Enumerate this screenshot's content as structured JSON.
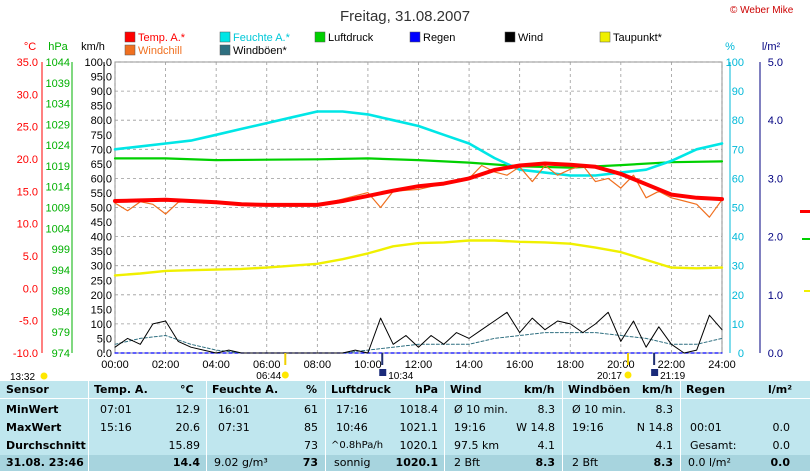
{
  "title": "Freitag, 31.08.2007",
  "credit": "© Weber Mike",
  "colors": {
    "temp": "#ff0000",
    "windchill": "#f07020",
    "humidity": "#00e6e6",
    "gust": "#2f6f80",
    "pressure": "#00d000",
    "rain": "#0000ff",
    "wind": "#000000",
    "dewpoint": "#f0f000",
    "table_bg": "#bfe6ee",
    "temp_axis": "#ff0000",
    "pressure_axis": "#00b000",
    "hum_axis": "#00b8d8",
    "rain_axis": "#000080"
  },
  "legend": {
    "row1": [
      {
        "label": "Temp. A.*",
        "color": "#ff0000"
      },
      {
        "label": "Feuchte A.*",
        "color": "#00e6e6"
      },
      {
        "label": "Luftdruck",
        "color": "#00d000"
      },
      {
        "label": "Regen",
        "color": "#0000ff"
      },
      {
        "label": "Wind",
        "color": "#000000"
      },
      {
        "label": "Taupunkt*",
        "color": "#f0f000"
      }
    ],
    "row2": [
      {
        "label": "Windchill",
        "color": "#f07020"
      },
      {
        "label": "Windböen*",
        "color": "#2f6f80"
      }
    ]
  },
  "axis_units": {
    "temp": "°C",
    "pressure": "hPa",
    "wind": "km/h",
    "humidity": "%",
    "rain": "l/m²"
  },
  "chart_data": {
    "type": "line",
    "title": "Freitag, 31.08.2007",
    "x_ticks": [
      "00:00",
      "02:00",
      "04:00",
      "06:00",
      "08:00",
      "10:00",
      "12:00",
      "14:00",
      "16:00",
      "18:00",
      "20:00",
      "22:00",
      "24:00"
    ],
    "xlim_hours": [
      0,
      24
    ],
    "axes": {
      "temp_c": {
        "range": [
          -10,
          35
        ],
        "ticks": [
          "35.0",
          "30.0",
          "25.0",
          "20.0",
          "15.0",
          "10.0",
          "5.0",
          "0.0",
          "-5.0",
          "-10.0"
        ]
      },
      "pressure_hpa": {
        "range": [
          974,
          1044
        ],
        "ticks": [
          "1044",
          "1039",
          "1034",
          "1029",
          "1024",
          "1019",
          "1014",
          "1009",
          "1004",
          "999",
          "994",
          "989",
          "984",
          "979",
          "974"
        ]
      },
      "wind_kmh": {
        "range": [
          0,
          100
        ],
        "ticks": [
          "100.0",
          "95.0",
          "90.0",
          "85.0",
          "80.0",
          "75.0",
          "70.0",
          "65.0",
          "60.0",
          "55.0",
          "50.0",
          "45.0",
          "40.0",
          "35.0",
          "30.0",
          "25.0",
          "20.0",
          "15.0",
          "10.0",
          "5.0",
          "0.0"
        ]
      },
      "humidity_pct": {
        "range": [
          0,
          100
        ],
        "ticks": [
          "100",
          "90",
          "80",
          "70",
          "60",
          "50",
          "40",
          "30",
          "20",
          "10",
          "0"
        ]
      },
      "rain_lm2": {
        "range": [
          0,
          5
        ],
        "ticks": [
          "5.0",
          "4.0",
          "3.0",
          "2.0",
          "1.0",
          "0.0"
        ]
      }
    },
    "grid": true,
    "series": [
      {
        "name": "Temp. A.*",
        "axis": "temp_c",
        "x": [
          0,
          1,
          2,
          3,
          4,
          5,
          6,
          7,
          8,
          9,
          10,
          11,
          12,
          13,
          14,
          15,
          16,
          17,
          18,
          19,
          20,
          21,
          22,
          23,
          24
        ],
        "y": [
          13.5,
          13.6,
          13.7,
          13.5,
          13.3,
          13.0,
          12.9,
          12.9,
          12.9,
          13.5,
          14.3,
          15.1,
          15.8,
          16.2,
          17.0,
          18.3,
          19.0,
          19.3,
          19.1,
          18.8,
          17.7,
          16.1,
          14.5,
          14.0,
          13.8
        ]
      },
      {
        "name": "Windchill",
        "axis": "temp_c",
        "x": [
          0,
          0.5,
          1,
          1.5,
          2,
          2.5,
          3,
          3.5,
          4,
          5,
          6,
          7,
          8,
          9,
          10,
          10.5,
          11,
          12,
          13,
          14,
          14.5,
          15,
          15.5,
          16,
          16.5,
          17,
          17.5,
          18,
          18.5,
          19,
          19.5,
          20,
          20.5,
          21,
          21.5,
          22,
          22.5,
          23,
          23.5,
          24
        ],
        "y": [
          13.2,
          12.0,
          13.4,
          13.0,
          11.5,
          13.3,
          13.5,
          13.2,
          13.3,
          13.0,
          12.9,
          12.7,
          12.8,
          13.8,
          14.8,
          12.5,
          15.0,
          15.3,
          16.2,
          17.0,
          19.0,
          18.0,
          17.5,
          18.8,
          16.5,
          19.0,
          17.5,
          18.4,
          19.0,
          16.5,
          17.0,
          15.5,
          17.5,
          14.0,
          15.0,
          14.0,
          13.5,
          13.0,
          11.0,
          13.7
        ]
      },
      {
        "name": "Feuchte A.*",
        "axis": "humidity_pct",
        "x": [
          0,
          1,
          2,
          3,
          4,
          5,
          6,
          7,
          8,
          9,
          10,
          11,
          12,
          13,
          14,
          15,
          16,
          17,
          18,
          19,
          20,
          21,
          22,
          23,
          24
        ],
        "y": [
          70,
          71,
          72,
          73,
          75,
          77,
          79,
          81,
          83,
          83,
          82,
          80,
          78,
          75,
          72,
          67,
          63,
          62,
          61,
          61,
          62,
          63,
          66,
          70,
          72
        ]
      },
      {
        "name": "Luftdruck",
        "axis": "pressure_hpa",
        "x": [
          0,
          2,
          4,
          6,
          8,
          10,
          12,
          14,
          16,
          18,
          20,
          22,
          24
        ],
        "y": [
          1020.8,
          1020.8,
          1020.4,
          1020.5,
          1020.6,
          1020.8,
          1020.4,
          1019.8,
          1018.9,
          1018.6,
          1019.2,
          1019.9,
          1020.1
        ]
      },
      {
        "name": "Taupunkt*",
        "axis": "temp_c",
        "x": [
          0,
          1,
          2,
          3,
          4,
          5,
          6,
          7,
          8,
          9,
          10,
          11,
          12,
          13,
          14,
          15,
          16,
          17,
          18,
          19,
          20,
          21,
          22,
          23,
          24
        ],
        "y": [
          2.0,
          2.3,
          2.7,
          2.8,
          2.9,
          3.0,
          3.2,
          3.5,
          3.8,
          4.5,
          5.4,
          6.5,
          7.0,
          7.1,
          7.4,
          7.4,
          7.2,
          7.1,
          6.9,
          6.3,
          5.6,
          4.4,
          3.2,
          3.1,
          3.2
        ]
      },
      {
        "name": "Wind",
        "axis": "wind_kmh",
        "x": [
          0,
          0.5,
          1,
          1.5,
          2,
          2.5,
          3,
          3.5,
          4,
          4.5,
          5,
          6,
          7,
          8,
          9,
          9.5,
          10,
          10.5,
          11,
          11.5,
          12,
          12.5,
          13,
          13.5,
          14,
          14.5,
          15,
          15.5,
          16,
          16.5,
          17,
          17.5,
          18,
          18.5,
          19,
          19.5,
          20,
          20.5,
          21,
          21.5,
          22,
          22.5,
          23,
          23.5,
          24
        ],
        "y": [
          2,
          5,
          3,
          10,
          11,
          4,
          2,
          1,
          0,
          1,
          0,
          0,
          0,
          0,
          0,
          1,
          0,
          12,
          3,
          6,
          2,
          6,
          3,
          7,
          5,
          8,
          11,
          14,
          7,
          12,
          8,
          11,
          10,
          7,
          10,
          14,
          4,
          11,
          2,
          9,
          3,
          0,
          1,
          13,
          8
        ]
      },
      {
        "name": "Windböen*",
        "axis": "wind_kmh",
        "x": [
          0,
          1,
          2,
          3,
          4,
          5,
          6,
          7,
          8,
          9,
          10,
          11,
          12,
          13,
          14,
          15,
          16,
          17,
          18,
          19,
          20,
          21,
          22,
          23,
          24
        ],
        "y": [
          3,
          5,
          6,
          3,
          1,
          0,
          0,
          0,
          0,
          0,
          1,
          2,
          3,
          3,
          3,
          5,
          6,
          7,
          7,
          7,
          6,
          5,
          3,
          3,
          5
        ]
      },
      {
        "name": "Regen",
        "axis": "rain_lm2",
        "x": [
          0,
          24
        ],
        "y": [
          0,
          0
        ]
      }
    ]
  },
  "markers": {
    "sunrise": "06:44",
    "sunset": "20:17",
    "moonrise": "21:19",
    "moonset": "10:34",
    "left_clock": "13:32"
  },
  "table": {
    "header": [
      "Sensor",
      "Temp. A.",
      "°C",
      "Feuchte A.",
      "%",
      "Luftdruck",
      "hPa",
      "Wind",
      "km/h",
      "Windböen",
      "km/h",
      "Regen",
      "l/m²"
    ],
    "row_labels": [
      "MinWert",
      "MaxWert",
      "Durchschnitt"
    ],
    "footer_date": "31.08. 23:46",
    "temp": {
      "min_time": "07:01",
      "min": "12.9",
      "max_time": "15:16",
      "max": "20.6",
      "avg": "15.89",
      "cur": "14.4"
    },
    "hum": {
      "min_time": "16:01",
      "min": "61",
      "max_time": "07:31",
      "max": "85",
      "avg": "73",
      "abs": "9.02 g/m³",
      "cur": "73"
    },
    "press": {
      "min_time": "17:16",
      "min": "1018.4",
      "max_time": "10:46",
      "max": "1021.1",
      "trend": "^0.8hPa/h",
      "avg": "1020.1",
      "cond": "sonnig",
      "cur": "1020.1"
    },
    "wind": {
      "r1": "Ø 10 min.",
      "r1v": "8.3",
      "r2": "19:16",
      "r2v": "W 14.8",
      "r3": "97.5 km",
      "r3v": "4.1",
      "bft": "2 Bft",
      "cur": "8.3"
    },
    "gust": {
      "r1": "Ø 10 min.",
      "r1v": "8.3",
      "r2": "19:16",
      "r2v": "N 14.8",
      "r3v": "4.1",
      "bft": "2 Bft",
      "cur": "8.3"
    },
    "rain": {
      "r2": "00:01",
      "r2v": "0.0",
      "r3": "Gesamt:",
      "r3v": "0.0",
      "cur": "0.0 l/m²",
      "curv": "0.0"
    }
  }
}
